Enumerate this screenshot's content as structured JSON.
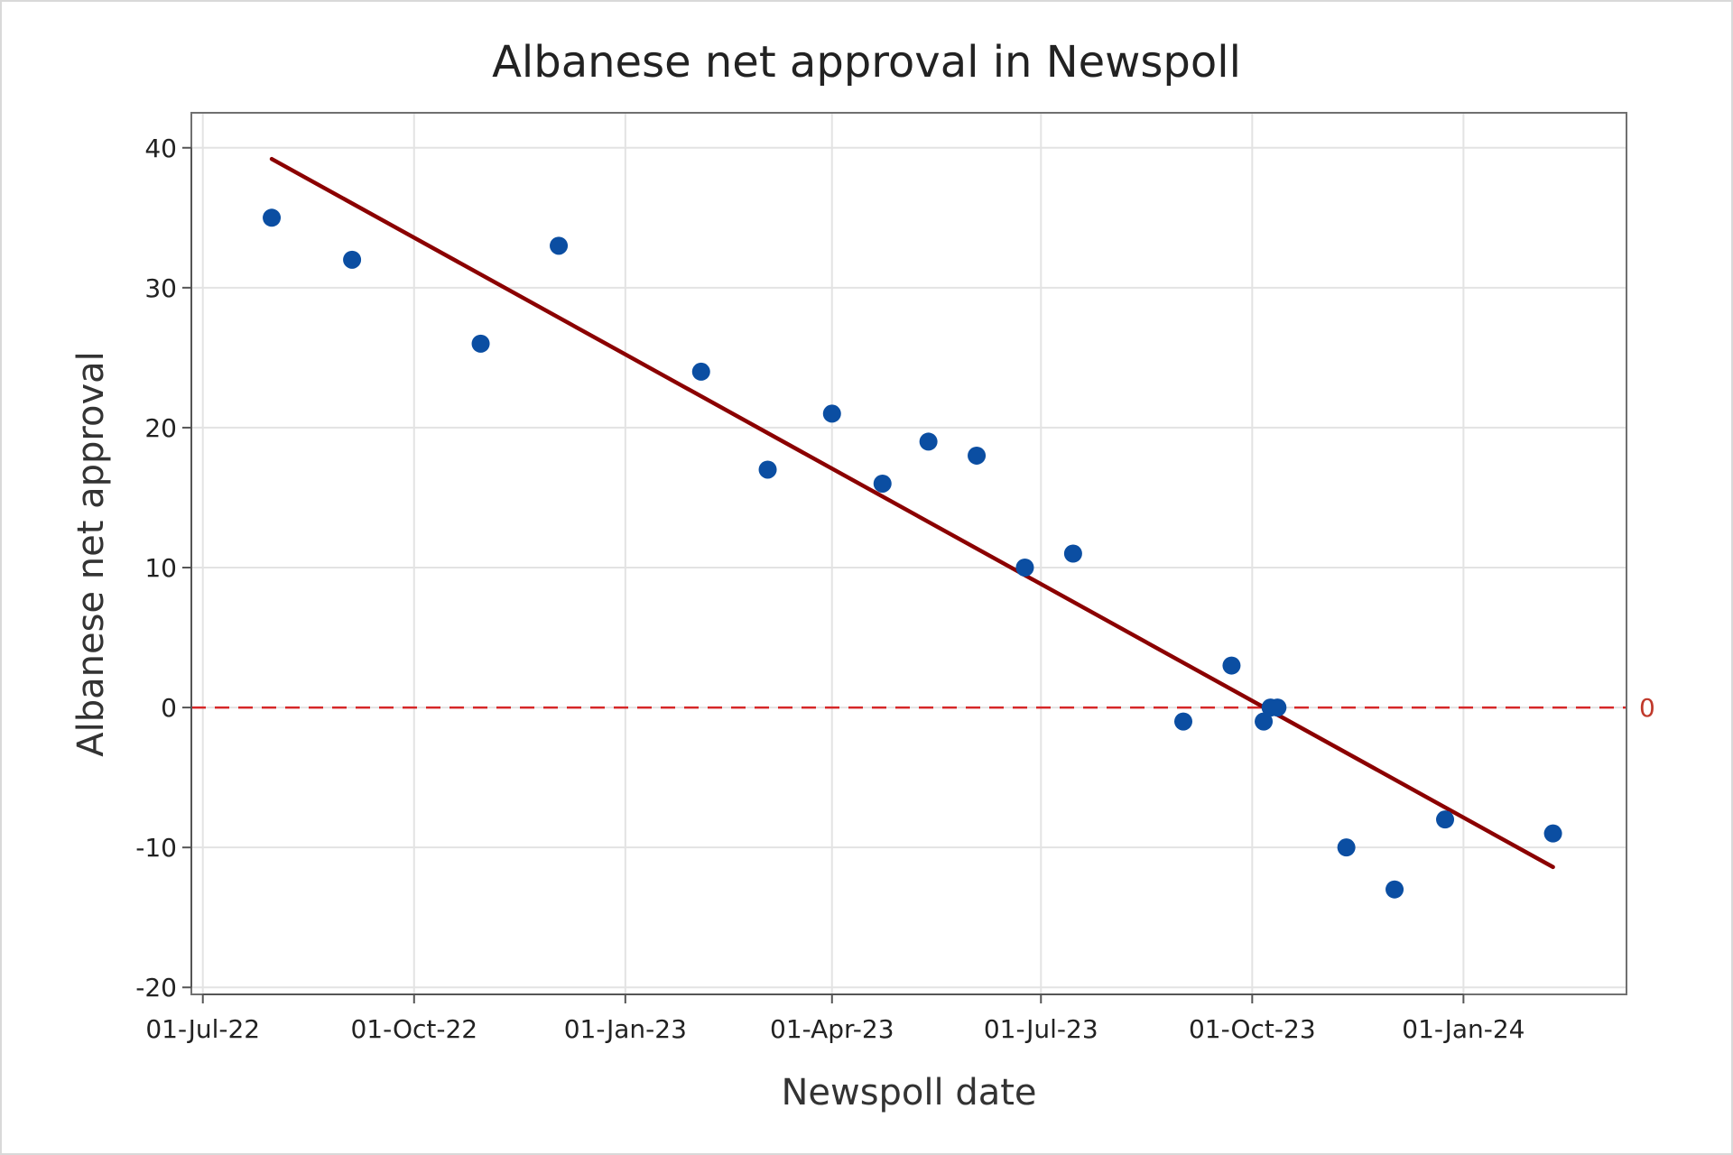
{
  "chart_data": {
    "type": "scatter",
    "title": "Albanese net approval in Newspoll",
    "xlabel": "Newspoll date",
    "ylabel": "Albanese net approval",
    "x_type": "date",
    "xlim": [
      "2022-06-26",
      "2024-03-12"
    ],
    "ylim": [
      -20.5,
      42.5
    ],
    "x_ticks": [
      {
        "date": "2022-07-01",
        "label": "01-Jul-22"
      },
      {
        "date": "2022-10-01",
        "label": "01-Oct-22"
      },
      {
        "date": "2023-01-01",
        "label": "01-Jan-23"
      },
      {
        "date": "2023-04-01",
        "label": "01-Apr-23"
      },
      {
        "date": "2023-07-01",
        "label": "01-Jul-23"
      },
      {
        "date": "2023-10-01",
        "label": "01-Oct-23"
      },
      {
        "date": "2024-01-01",
        "label": "01-Jan-24"
      }
    ],
    "y_ticks": [
      {
        "value": 40,
        "label": "40"
      },
      {
        "value": 30,
        "label": "30"
      },
      {
        "value": 20,
        "label": "20"
      },
      {
        "value": 10,
        "label": "10"
      },
      {
        "value": 0,
        "label": "0"
      },
      {
        "value": -10,
        "label": "-10"
      },
      {
        "value": -20,
        "label": "-20"
      }
    ],
    "grid": true,
    "points": [
      {
        "date": "2022-07-31",
        "value": 35
      },
      {
        "date": "2022-09-04",
        "value": 32
      },
      {
        "date": "2022-10-30",
        "value": 26
      },
      {
        "date": "2022-12-03",
        "value": 33
      },
      {
        "date": "2023-02-03",
        "value": 24
      },
      {
        "date": "2023-03-04",
        "value": 17
      },
      {
        "date": "2023-04-01",
        "value": 21
      },
      {
        "date": "2023-04-23",
        "value": 16
      },
      {
        "date": "2023-05-13",
        "value": 19
      },
      {
        "date": "2023-06-03",
        "value": 18
      },
      {
        "date": "2023-06-24",
        "value": 10
      },
      {
        "date": "2023-07-15",
        "value": 11
      },
      {
        "date": "2023-09-01",
        "value": -1
      },
      {
        "date": "2023-09-22",
        "value": 3
      },
      {
        "date": "2023-10-06",
        "value": -1
      },
      {
        "date": "2023-10-09",
        "value": 0
      },
      {
        "date": "2023-10-12",
        "value": 0
      },
      {
        "date": "2023-11-11",
        "value": -10
      },
      {
        "date": "2023-12-02",
        "value": -13
      },
      {
        "date": "2023-12-24",
        "value": -8
      },
      {
        "date": "2024-02-09",
        "value": -9
      }
    ],
    "trend_line": {
      "start": {
        "date": "2022-07-31",
        "value": 39.2
      },
      "end": {
        "date": "2024-02-09",
        "value": -11.4
      }
    },
    "reference_line": {
      "value": 0,
      "label": "0",
      "style": "dashed"
    },
    "colors": {
      "points": "#0b4ea2",
      "trend": "#8b0000",
      "reference": "#d62728",
      "grid": "#e3e3e3",
      "frame": "#707070"
    }
  }
}
